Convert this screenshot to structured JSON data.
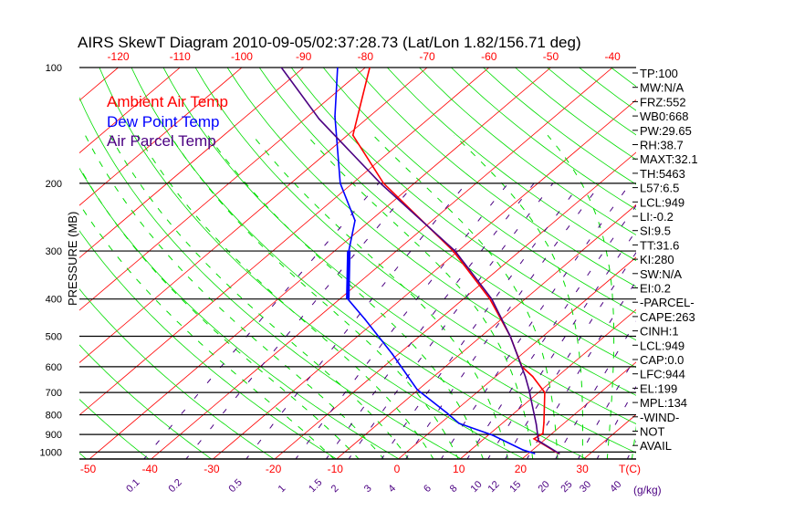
{
  "title": "AIRS SkewT Diagram 2010-09-05/02:37:28.73 (Lat/Lon 1.82/156.71 deg)",
  "y_axis_label": "PRESSURE (MB)",
  "pressure_labels": [
    "100",
    "200",
    "300",
    "400",
    "500",
    "600",
    "700",
    "800",
    "900",
    "1000"
  ],
  "top_temp_labels": [
    "-120",
    "-110",
    "-100",
    "-90",
    "-80",
    "-70",
    "-60",
    "-50",
    "-40"
  ],
  "bottom_temp_labels": [
    "-50",
    "-40",
    "-30",
    "-20",
    "-10",
    "0",
    "10",
    "20",
    "30"
  ],
  "bottom_temp_unit": "T(C)",
  "mixing_ratio_labels": [
    "0.1",
    "0.2",
    "0.5",
    "1",
    "1.5",
    "2",
    "3",
    "4",
    "6",
    "8",
    "10",
    "12",
    "15",
    "20",
    "25",
    "30",
    "40"
  ],
  "mixing_ratio_unit": "(g/kg)",
  "legend": {
    "ambient": "Ambient Air Temp",
    "dewpoint": "Dew Point Temp",
    "parcel": "Air Parcel Temp"
  },
  "stats": [
    "TP:100",
    "MW:N/A",
    "FRZ:552",
    "WB0:668",
    "PW:29.65",
    "RH:38.7",
    "MAXT:32.1",
    "TH:5463",
    "L57:6.5",
    "LCL:949",
    "LI:-0.2",
    "SI:9.5",
    "TT:31.6",
    "KI:280",
    "SW:N/A",
    "EI:0.2",
    "-PARCEL-",
    "CAPE:263",
    "CINH:1",
    "LCL:949",
    "CAP:0.0",
    "LFC:944",
    "EL:199",
    "MPL:134",
    "-WIND-",
    "NOT",
    "AVAIL"
  ],
  "colors": {
    "ambient": "#ff0000",
    "dewpoint": "#0000ff",
    "parcel": "#4b0082",
    "isotherm": "#ff0000",
    "adiabat": "#00dd00",
    "mixing_ratio": "#4b0082"
  },
  "chart_data": {
    "type": "line",
    "title": "AIRS SkewT Diagram 2010-09-05/02:37:28.73 (Lat/Lon 1.82/156.71 deg)",
    "xlabel": "T(C)",
    "ylabel": "PRESSURE (MB)",
    "ylim": [
      1050,
      100
    ],
    "xlim_surface": [
      -52,
      36
    ],
    "series": [
      {
        "name": "Ambient Air Temp",
        "p": [
          100,
          150,
          200,
          300,
          400,
          500,
          600,
          636,
          700,
          838,
          894,
          924,
          1009
        ],
        "t": [
          -79.3,
          -69.1,
          -55.0,
          -30.8,
          -15.7,
          -5.3,
          2.4,
          6.0,
          11.0,
          16.6,
          18.5,
          18.1,
          24.9
        ]
      },
      {
        "name": "Dew Point Temp",
        "p": [
          100,
          134,
          200,
          250,
          300,
          400,
          452,
          556,
          688,
          793,
          842,
          904,
          987,
          1009
        ],
        "t": [
          -84.5,
          -75.6,
          -62.0,
          -52.5,
          -47.7,
          -38.7,
          -32.0,
          -21.0,
          -10.2,
          -0.8,
          3.0,
          10.7,
          18.4,
          21.0
        ]
      },
      {
        "name": "Air Parcel Temp",
        "p": [
          100,
          136,
          200,
          300,
          400,
          500,
          636,
          688,
          847,
          935,
          1009
        ],
        "t": [
          -93.6,
          -77.7,
          -55.5,
          -30.5,
          -15.4,
          -5.3,
          4.8,
          7.9,
          15.7,
          19.2,
          25.0
        ]
      }
    ]
  }
}
